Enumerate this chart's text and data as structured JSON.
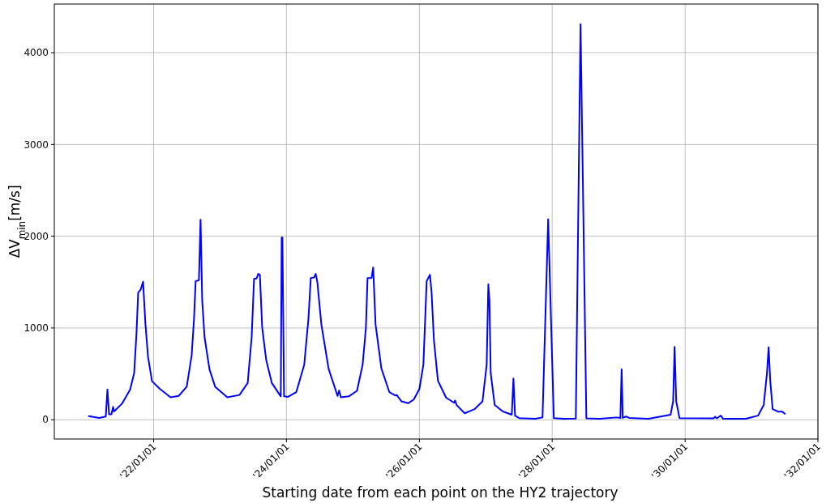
{
  "chart_data": {
    "type": "line",
    "xlabel": "Starting date from each point on the HY2 trajectory",
    "ylabel": "ΔV$_{min}$[m/s]",
    "x": [
      "2021-01-10",
      "2021-03-08",
      "2021-04-13",
      "2021-04-22",
      "2021-05-01",
      "2021-05-14",
      "2021-05-23",
      "2021-05-28",
      "2021-07-11",
      "2021-08-25",
      "2021-09-16",
      "2021-09-29",
      "2021-10-08",
      "2021-10-22",
      "2021-11-04",
      "2021-11-17",
      "2021-12-01",
      "2021-12-23",
      "2022-02-05",
      "2022-04-04",
      "2022-05-19",
      "2022-07-02",
      "2022-07-29",
      "2022-08-11",
      "2022-08-20",
      "2022-09-07",
      "2022-09-16",
      "2022-09-25",
      "2022-10-08",
      "2022-11-04",
      "2022-12-05",
      "2023-02-10",
      "2023-04-18",
      "2023-06-02",
      "2023-06-24",
      "2023-07-07",
      "2023-07-21",
      "2023-07-30",
      "2023-08-08",
      "2023-08-21",
      "2023-09-12",
      "2023-10-13",
      "2023-12-01",
      "2023-12-06",
      "2023-12-10",
      "2023-12-19",
      "2024-01-10",
      "2024-02-24",
      "2024-04-08",
      "2024-05-01",
      "2024-05-14",
      "2024-06-01",
      "2024-06-10",
      "2024-06-19",
      "2024-07-11",
      "2024-08-20",
      "2024-10-08",
      "2024-10-17",
      "2024-10-26",
      "2024-12-09",
      "2025-01-23",
      "2025-02-23",
      "2025-03-13",
      "2025-03-22",
      "2025-04-13",
      "2025-04-22",
      "2025-05-05",
      "2025-06-06",
      "2025-07-20",
      "2025-08-20",
      "2025-08-29",
      "2025-09-25",
      "2025-10-31",
      "2025-12-01",
      "2026-01-01",
      "2026-01-23",
      "2026-02-10",
      "2026-02-28",
      "2026-03-09",
      "2026-03-22",
      "2026-04-13",
      "2026-05-28",
      "2026-07-11",
      "2026-07-16",
      "2026-07-25",
      "2026-09-07",
      "2026-10-31",
      "2026-12-14",
      "2027-01-06",
      "2027-01-15",
      "2027-01-21",
      "2027-01-28",
      "2027-02-19",
      "2027-04-05",
      "2027-05-24",
      "2027-06-02",
      "2027-06-11",
      "2027-07-03",
      "2027-09-30",
      "2027-11-09",
      "2027-12-10",
      "2028-01-10",
      "2028-03-04",
      "2028-05-10",
      "2028-06-05",
      "2028-07-07",
      "2028-09-20",
      "2028-12-18",
      "2029-01-10",
      "2029-01-17",
      "2029-01-23",
      "2029-02-10",
      "2029-02-28",
      "2029-06-14",
      "2029-10-13",
      "2029-10-27",
      "2029-11-04",
      "2029-11-13",
      "2029-12-01",
      "2030-06-06",
      "2030-06-15",
      "2030-06-24",
      "2030-07-16",
      "2030-07-29",
      "2030-12-01",
      "2031-02-06",
      "2031-03-09",
      "2031-03-27",
      "2031-04-05",
      "2031-04-14",
      "2031-04-27",
      "2031-05-28",
      "2031-06-19",
      "2031-07-03"
    ],
    "series": [
      {
        "color": "#0000ff",
        "values": [
          40,
          20,
          35,
          330,
          60,
          60,
          140,
          90,
          175,
          330,
          510,
          950,
          1385,
          1420,
          1505,
          1040,
          690,
          420,
          335,
          245,
          260,
          360,
          700,
          1100,
          1510,
          1520,
          2180,
          1300,
          900,
          550,
          360,
          245,
          270,
          400,
          900,
          1535,
          1540,
          1590,
          1580,
          1000,
          650,
          400,
          255,
          1985,
          1985,
          255,
          250,
          300,
          600,
          1100,
          1545,
          1550,
          1590,
          1500,
          1040,
          555,
          260,
          320,
          245,
          255,
          315,
          600,
          1000,
          1545,
          1545,
          1660,
          1040,
          560,
          300,
          265,
          270,
          200,
          180,
          220,
          335,
          600,
          1510,
          1580,
          1390,
          865,
          425,
          240,
          185,
          210,
          160,
          70,
          115,
          200,
          600,
          1475,
          1305,
          510,
          160,
          90,
          55,
          450,
          45,
          18,
          10,
          25,
          2185,
          18,
          10,
          12,
          4310,
          15,
          10,
          25,
          20,
          550,
          20,
          35,
          20,
          10,
          55,
          200,
          795,
          200,
          18,
          15,
          32,
          15,
          45,
          10,
          10,
          45,
          160,
          510,
          790,
          425,
          115,
          88,
          88,
          65
        ]
      }
    ],
    "xlim": [
      "2020-07-04",
      "2032-01-01"
    ],
    "xticks": [
      {
        "value": "2022-01-01",
        "label": "'22/01/01"
      },
      {
        "value": "2024-01-01",
        "label": "'24/01/01"
      },
      {
        "value": "2026-01-01",
        "label": "'26/01/01"
      },
      {
        "value": "2028-01-01",
        "label": "'28/01/01"
      },
      {
        "value": "2030-01-01",
        "label": "'30/01/01"
      },
      {
        "value": "2032-01-01",
        "label": "'32/01/01"
      }
    ],
    "ylim": [
      -210,
      4530
    ],
    "yticks": [
      0,
      1000,
      2000,
      3000,
      4000
    ],
    "grid": true,
    "marker": "none",
    "line_style": "solid"
  }
}
